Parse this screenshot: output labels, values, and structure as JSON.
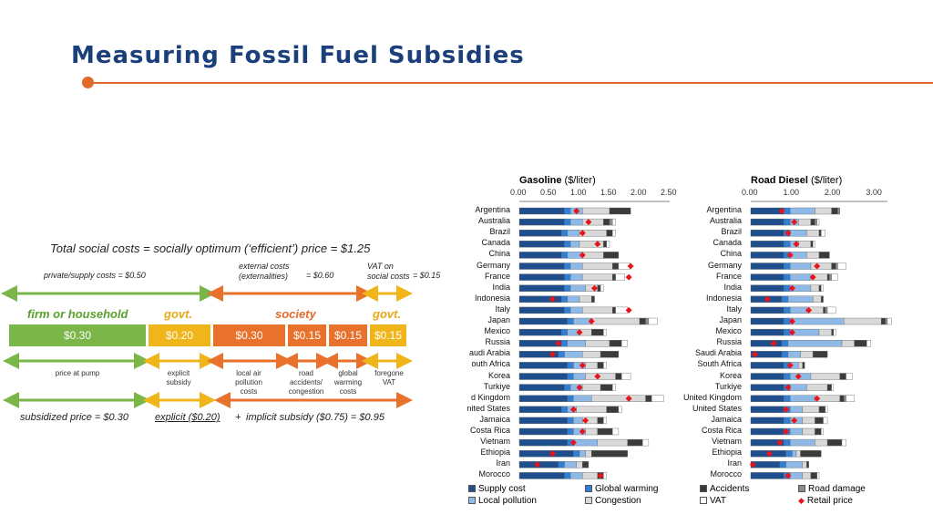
{
  "title": "Measuring Fossil Fuel Subsidies",
  "diagram": {
    "headline": "Total social costs = socially optimum (‘efficient’) price = $1.25",
    "private_costs": "private/supply costs = $0.50",
    "external_costs": "external costs (externalities)",
    "external_value": "= $0.60",
    "vat_costs": "VAT on social costs",
    "vat_value": "= $0.15",
    "group_firm": "firm or household",
    "group_govt1": "govt.",
    "group_society": "society",
    "group_govt2": "govt.",
    "boxes": [
      "$0.30",
      "$0.20",
      "$0.30",
      "$0.15",
      "$0.15",
      "$0.15"
    ],
    "captions": [
      "price at pump",
      "explicit subsidy",
      "local air pollution costs",
      "road accidents/ congestion",
      "global warming costs",
      "foregone VAT"
    ],
    "bottom_subsidized": "subsidized price = $0.30",
    "bottom_explicit": "explicit ($0.20)",
    "bottom_plus": "+",
    "bottom_implicit": "implicit subsidy ($0.75) = $0.95",
    "colors": {
      "green": "#7ab648",
      "yellow": "#f1b51c",
      "orange": "#e8722c"
    }
  },
  "chart_data": [
    {
      "type": "bar",
      "title": "Gasoline",
      "unit": "($/liter)",
      "xticks": [
        "0.00",
        "0.50",
        "1.00",
        "1.50",
        "2.00",
        "2.50"
      ],
      "xlim": [
        0,
        2.5
      ],
      "categories": [
        "Argentina",
        "Australia",
        "Brazil",
        "Canada",
        "China",
        "Germany",
        "France",
        "India",
        "Indonesia",
        "Italy",
        "Japan",
        "Mexico",
        "Russia",
        "Saudi Arabia",
        "South Africa",
        "Korea",
        "Turkiye",
        "United Kingdom",
        "United States",
        "Jamaica",
        "Costa Rica",
        "Vietnam",
        "Ethiopia",
        "Iran",
        "Morocco"
      ],
      "category_labels": [
        "Argentina",
        "Australia",
        "Brazil",
        "Canada",
        "China",
        "Germany",
        "France",
        "India",
        "Indonesia",
        "Italy",
        "Japan",
        "Mexico",
        "Russia",
        "audi Arabia",
        "outh Africa",
        "Korea",
        "Turkiye",
        "d Kingdom",
        "nited States",
        "Jamaica",
        "Costa Rica",
        "Vietnam",
        "Ethiopia",
        "Iran",
        "Morocco"
      ],
      "series": [
        {
          "name": "Supply cost",
          "values": [
            0.75,
            0.75,
            0.7,
            0.75,
            0.7,
            0.75,
            0.75,
            0.75,
            0.7,
            0.75,
            0.8,
            0.7,
            0.7,
            0.65,
            0.8,
            0.8,
            0.75,
            0.8,
            0.7,
            0.8,
            0.8,
            0.8,
            0.9,
            0.65,
            0.75
          ]
        },
        {
          "name": "Global warming",
          "values": [
            0.1,
            0.1,
            0.1,
            0.1,
            0.1,
            0.1,
            0.1,
            0.1,
            0.1,
            0.1,
            0.1,
            0.1,
            0.1,
            0.1,
            0.1,
            0.1,
            0.1,
            0.1,
            0.1,
            0.1,
            0.1,
            0.1,
            0.1,
            0.1,
            0.1
          ]
        },
        {
          "name": "Local pollution",
          "values": [
            0.2,
            0.2,
            0.2,
            0.15,
            0.25,
            0.2,
            0.2,
            0.25,
            0.2,
            0.2,
            0.3,
            0.2,
            0.3,
            0.3,
            0.2,
            0.2,
            0.2,
            0.3,
            0.15,
            0.15,
            0.2,
            0.4,
            0.1,
            0.2,
            0.2
          ]
        },
        {
          "name": "Congestion",
          "values": [
            0.45,
            0.35,
            0.45,
            0.4,
            0.35,
            0.5,
            0.5,
            0.2,
            0.2,
            0.5,
            0.8,
            0.2,
            0.4,
            0.3,
            0.2,
            0.5,
            0.3,
            0.9,
            0.5,
            0.25,
            0.2,
            0.5,
            0.1,
            0.1,
            0.25
          ]
        },
        {
          "name": "Accidents",
          "values": [
            0.35,
            0.1,
            0.1,
            0.05,
            0.25,
            0.1,
            0.05,
            0.05,
            0.05,
            0.05,
            0.1,
            0.2,
            0.2,
            0.3,
            0.1,
            0.1,
            0.2,
            0.1,
            0.2,
            0.1,
            0.25,
            0.25,
            0.6,
            0.1,
            0.1
          ]
        },
        {
          "name": "Road damage",
          "values": [
            0,
            0.05,
            0,
            0,
            0,
            0,
            0,
            0,
            0,
            0,
            0.05,
            0,
            0,
            0,
            0,
            0,
            0,
            0,
            0,
            0,
            0,
            0,
            0,
            0,
            0
          ]
        },
        {
          "name": "VAT",
          "values": [
            0,
            0.05,
            0.05,
            0.05,
            0,
            0.2,
            0.15,
            0.05,
            0,
            0.2,
            0.15,
            0.05,
            0.1,
            0,
            0.05,
            0.15,
            0.05,
            0.2,
            0.05,
            0.05,
            0.1,
            0.1,
            0,
            0,
            0.05
          ]
        }
      ],
      "retail_price": [
        0.95,
        1.15,
        1.05,
        1.3,
        1.05,
        1.85,
        1.82,
        1.25,
        0.55,
        1.82,
        1.2,
        1.0,
        0.65,
        0.55,
        1.05,
        1.3,
        1.0,
        1.82,
        0.9,
        1.1,
        1.05,
        0.9,
        0.55,
        0.3,
        1.35
      ]
    },
    {
      "type": "bar",
      "title": "Road Diesel",
      "unit": "($/liter)",
      "xticks": [
        "0.00",
        "1.00",
        "2.00",
        "3.00"
      ],
      "xlim": [
        0,
        3.3
      ],
      "categories": [
        "Argentina",
        "Australia",
        "Brazil",
        "Canada",
        "China",
        "Germany",
        "France",
        "India",
        "Indonesia",
        "Italy",
        "Japan",
        "Mexico",
        "Russia",
        "Saudi Arabia",
        "South Africa",
        "Korea",
        "Turkiye",
        "United Kingdom",
        "United States",
        "Jamaica",
        "Costa Rica",
        "Vietnam",
        "Ethiopia",
        "Iran",
        "Morocco"
      ],
      "category_labels": [
        "Argentina",
        "Australia",
        "Brazil",
        "Canada",
        "China",
        "Germany",
        "France",
        "India",
        "Indonesia",
        "Italy",
        "Japan",
        "Mexico",
        "Russia",
        "Saudi Arabia",
        "South Africa",
        "Korea",
        "Turkiye",
        "United Kingdom",
        "United States",
        "Jamaica",
        "Costa Rica",
        "Vietnam",
        "Ethiopia",
        "Iran",
        "Morocco"
      ],
      "series": [
        {
          "name": "Supply cost",
          "values": [
            0.8,
            0.8,
            0.8,
            0.8,
            0.8,
            0.8,
            0.8,
            0.8,
            0.75,
            0.8,
            0.8,
            0.8,
            0.75,
            0.75,
            0.8,
            0.8,
            0.8,
            0.8,
            0.8,
            0.8,
            0.8,
            0.8,
            0.85,
            0.7,
            0.8
          ]
        },
        {
          "name": "Global warming",
          "values": [
            0.15,
            0.15,
            0.15,
            0.15,
            0.15,
            0.15,
            0.15,
            0.15,
            0.15,
            0.15,
            0.15,
            0.15,
            0.15,
            0.15,
            0.15,
            0.15,
            0.15,
            0.15,
            0.15,
            0.15,
            0.15,
            0.15,
            0.15,
            0.15,
            0.15
          ]
        },
        {
          "name": "Local pollution",
          "values": [
            0.6,
            0.2,
            0.4,
            0.2,
            0.4,
            0.5,
            0.5,
            0.5,
            0.6,
            0.4,
            1.3,
            0.7,
            1.3,
            0.3,
            0.2,
            0.5,
            0.4,
            0.6,
            0.3,
            0.3,
            0.3,
            0.6,
            0.1,
            0.4,
            0.3
          ]
        },
        {
          "name": "Congestion",
          "values": [
            0.4,
            0.3,
            0.3,
            0.3,
            0.3,
            0.5,
            0.4,
            0.2,
            0.2,
            0.4,
            0.9,
            0.3,
            0.3,
            0.3,
            0.1,
            0.7,
            0.5,
            0.6,
            0.4,
            0.3,
            0.3,
            0.3,
            0.1,
            0.1,
            0.2
          ]
        },
        {
          "name": "Accidents",
          "values": [
            0.15,
            0.1,
            0.05,
            0.05,
            0.25,
            0.1,
            0.05,
            0.05,
            0.05,
            0.05,
            0.1,
            0.05,
            0.3,
            0.35,
            0.05,
            0.15,
            0.1,
            0.1,
            0.15,
            0.2,
            0.15,
            0.35,
            0.5,
            0.05,
            0.15
          ]
        },
        {
          "name": "Road damage",
          "values": [
            0.05,
            0.05,
            0,
            0,
            0,
            0.05,
            0.05,
            0,
            0,
            0.05,
            0.05,
            0,
            0,
            0,
            0,
            0,
            0,
            0.05,
            0,
            0,
            0,
            0,
            0,
            0,
            0
          ]
        },
        {
          "name": "VAT",
          "values": [
            0,
            0.05,
            0.1,
            0.05,
            0,
            0.2,
            0.15,
            0.05,
            0,
            0.2,
            0.1,
            0.05,
            0.1,
            0,
            0,
            0.15,
            0.05,
            0.2,
            0.05,
            0.1,
            0.05,
            0.1,
            0,
            0,
            0.05
          ]
        }
      ],
      "retail_price": [
        0.75,
        1.05,
        0.9,
        1.1,
        0.95,
        1.6,
        1.5,
        1.0,
        0.4,
        1.4,
        1.0,
        1.0,
        0.55,
        0.1,
        0.95,
        1.15,
        0.9,
        1.6,
        0.85,
        1.05,
        0.85,
        0.7,
        0.45,
        0.05,
        0.9
      ]
    }
  ],
  "legend": [
    {
      "label": "Supply cost",
      "color": "#1f4e8c",
      "kind": "box"
    },
    {
      "label": "Global warming",
      "color": "#2f7fd6",
      "kind": "box"
    },
    {
      "label": "Accidents",
      "color": "#3b3b3b",
      "kind": "box"
    },
    {
      "label": "Road damage",
      "color": "#8c8c8c",
      "kind": "box"
    },
    {
      "label": "Local pollution",
      "color": "#8fb9e6",
      "kind": "box"
    },
    {
      "label": "Congestion",
      "color": "#d9d9d9",
      "kind": "box"
    },
    {
      "label": "VAT",
      "color": "#ffffff",
      "kind": "box"
    },
    {
      "label": "Retail price",
      "color": "#e8141b",
      "kind": "diamond"
    }
  ],
  "series_colors": [
    "#1f4e8c",
    "#2f7fd6",
    "#8fb9e6",
    "#d9d9d9",
    "#3b3b3b",
    "#8c8c8c",
    "#ffffff"
  ]
}
